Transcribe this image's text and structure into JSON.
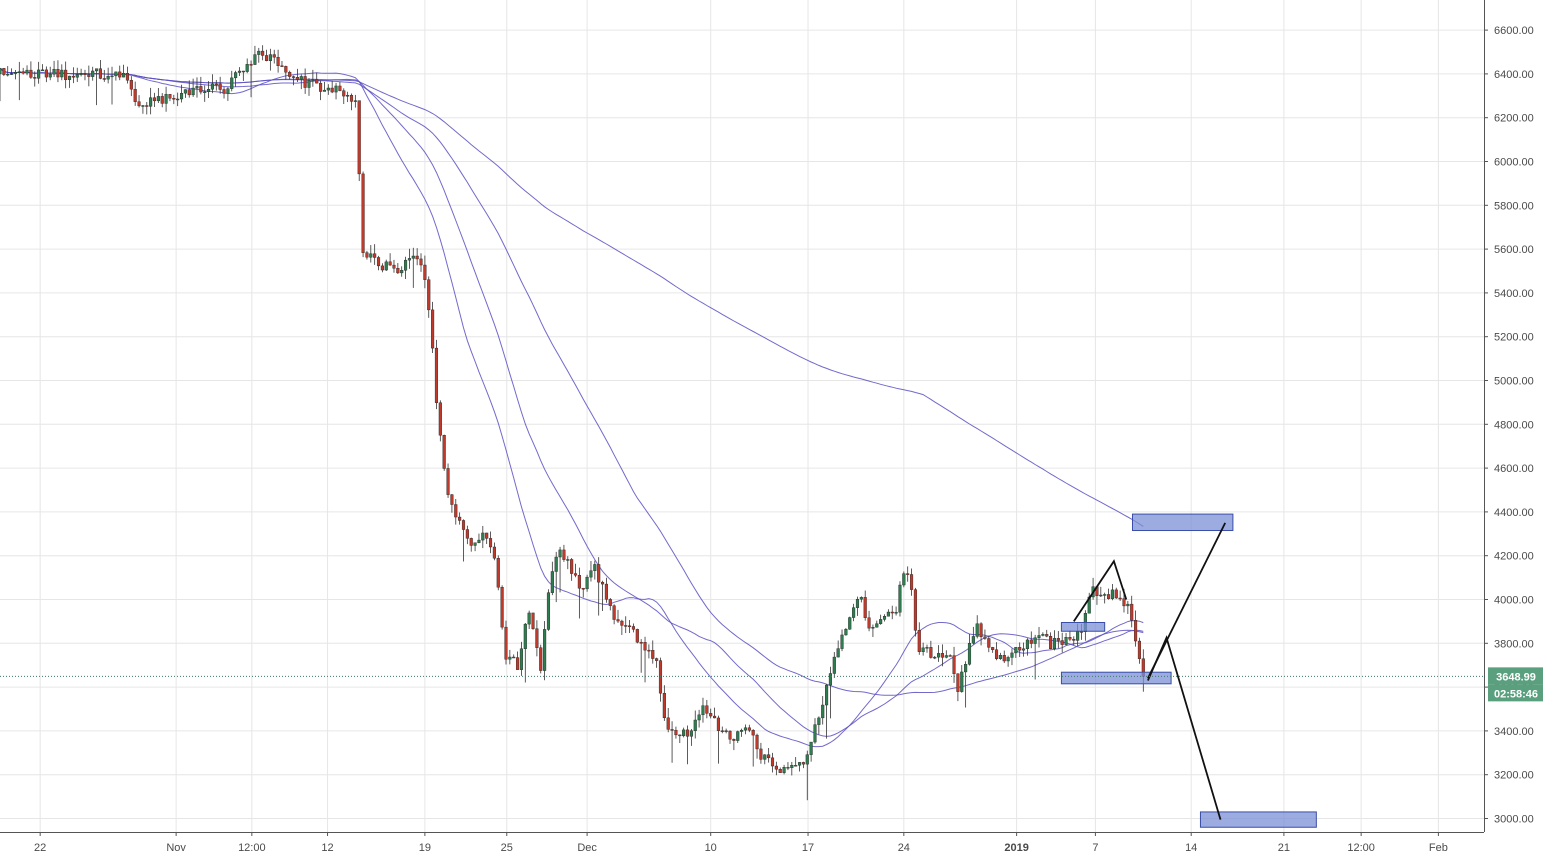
{
  "chart_data": {
    "type": "line",
    "subtype": "candlestick",
    "ylim": [
      2960,
      6680
    ],
    "xlim": [
      0,
      99
    ],
    "y_ticks": [
      3000,
      3200,
      3400,
      3600,
      3800,
      4000,
      4200,
      4400,
      4600,
      4800,
      5000,
      5200,
      5400,
      5600,
      5800,
      6000,
      6200,
      6400,
      6600
    ],
    "y_tick_labels": [
      "3000.00",
      "3200.00",
      "3400.00",
      "3600.00",
      "3800.00",
      "4000.00",
      "4200.00",
      "4400.00",
      "4600.00",
      "4800.00",
      "5000.00",
      "5200.00",
      "5400.00",
      "5600.00",
      "5800.00",
      "6000.00",
      "6200.00",
      "6400.00",
      "6600.00"
    ],
    "x_ticks": [
      {
        "t": 2.6,
        "label": "22",
        "bold": false
      },
      {
        "t": 11.4,
        "label": "Nov",
        "bold": false
      },
      {
        "t": 16.3,
        "label": "12:00",
        "bold": false
      },
      {
        "t": 21.2,
        "label": "12",
        "bold": false
      },
      {
        "t": 27.5,
        "label": "19",
        "bold": false
      },
      {
        "t": 32.8,
        "label": "25",
        "bold": false
      },
      {
        "t": 38.0,
        "label": "Dec",
        "bold": false
      },
      {
        "t": 46.0,
        "label": "10",
        "bold": false
      },
      {
        "t": 52.3,
        "label": "17",
        "bold": false
      },
      {
        "t": 58.5,
        "label": "24",
        "bold": false
      },
      {
        "t": 65.8,
        "label": "2019",
        "bold": true
      },
      {
        "t": 70.9,
        "label": "7",
        "bold": false
      },
      {
        "t": 77.1,
        "label": "14",
        "bold": false
      },
      {
        "t": 83.1,
        "label": "21",
        "bold": false
      },
      {
        "t": 88.1,
        "label": "12:00",
        "bold": false
      },
      {
        "t": 93.1,
        "label": "Feb",
        "bold": false
      }
    ],
    "grid": true,
    "up_color": "#2e7d4f",
    "down_color": "#c0392b",
    "ma_color": "#5b4fc2",
    "close_anchors": [
      [
        0,
        6400
      ],
      [
        4,
        6400
      ],
      [
        8,
        6405
      ],
      [
        9,
        6260
      ],
      [
        11,
        6300
      ],
      [
        13,
        6340
      ],
      [
        14.5,
        6335
      ],
      [
        15.5,
        6420
      ],
      [
        16.8,
        6500
      ],
      [
        17.5,
        6480
      ],
      [
        18.5,
        6400
      ],
      [
        20,
        6350
      ],
      [
        22,
        6340
      ],
      [
        23,
        6260
      ],
      [
        23.5,
        5600
      ],
      [
        24.5,
        5540
      ],
      [
        25.5,
        5500
      ],
      [
        27,
        5560
      ],
      [
        27.5,
        5480
      ],
      [
        28,
        5150
      ],
      [
        28.4,
        4780
      ],
      [
        29,
        4500
      ],
      [
        29.8,
        4330
      ],
      [
        30.6,
        4220
      ],
      [
        31.2,
        4300
      ],
      [
        32,
        4200
      ],
      [
        32.7,
        3750
      ],
      [
        33.5,
        3700
      ],
      [
        34.2,
        3950
      ],
      [
        35,
        3680
      ],
      [
        35.6,
        4100
      ],
      [
        36.2,
        4250
      ],
      [
        36.8,
        4150
      ],
      [
        37.5,
        4050
      ],
      [
        38.5,
        4140
      ],
      [
        39.5,
        3950
      ],
      [
        40.5,
        3880
      ],
      [
        41.5,
        3800
      ],
      [
        42.5,
        3700
      ],
      [
        43.2,
        3400
      ],
      [
        44,
        3370
      ],
      [
        44.8,
        3420
      ],
      [
        45.5,
        3500
      ],
      [
        46.5,
        3420
      ],
      [
        47.3,
        3360
      ],
      [
        48.3,
        3420
      ],
      [
        49.2,
        3300
      ],
      [
        50,
        3230
      ],
      [
        51,
        3220
      ],
      [
        51.8,
        3250
      ],
      [
        52.3,
        3290
      ],
      [
        53,
        3480
      ],
      [
        54,
        3720
      ],
      [
        55,
        3920
      ],
      [
        55.6,
        4020
      ],
      [
        56.3,
        3880
      ],
      [
        57,
        3920
      ],
      [
        58,
        3960
      ],
      [
        58.6,
        4180
      ],
      [
        59,
        4020
      ],
      [
        59.5,
        3750
      ],
      [
        60.5,
        3760
      ],
      [
        61.5,
        3720
      ],
      [
        62,
        3600
      ],
      [
        62.6,
        3750
      ],
      [
        63.2,
        3880
      ],
      [
        64,
        3760
      ],
      [
        65,
        3730
      ],
      [
        66,
        3780
      ],
      [
        67,
        3840
      ],
      [
        68,
        3800
      ],
      [
        69,
        3800
      ],
      [
        70,
        3850
      ],
      [
        70.6,
        4060
      ],
      [
        71.5,
        4010
      ],
      [
        72.5,
        4030
      ],
      [
        73.3,
        3920
      ],
      [
        73.6,
        3760
      ],
      [
        74,
        3650
      ]
    ],
    "ma_periods": [
      7,
      11,
      18,
      60
    ],
    "last_price": 3648.99,
    "last_price_label": "3648.99",
    "countdown_label": "02:58:46",
    "annotations": {
      "boxes": [
        {
          "t0": 73.3,
          "t1": 79.8,
          "p0": 4315,
          "p1": 4390
        },
        {
          "t0": 68.7,
          "t1": 75.8,
          "p0": 3615,
          "p1": 3668
        },
        {
          "t0": 68.7,
          "t1": 71.5,
          "p0": 3855,
          "p1": 3895
        },
        {
          "t0": 77.7,
          "t1": 85.2,
          "p0": 2960,
          "p1": 3030
        }
      ],
      "lines": [
        [
          [
            74.3,
            3640
          ],
          [
            79.3,
            4350
          ]
        ],
        [
          [
            74.3,
            3630
          ],
          [
            75.5,
            3825
          ],
          [
            79.0,
            2995
          ]
        ],
        [
          [
            69.5,
            3900
          ],
          [
            72.1,
            4175
          ],
          [
            72.9,
            4000
          ]
        ]
      ]
    }
  }
}
